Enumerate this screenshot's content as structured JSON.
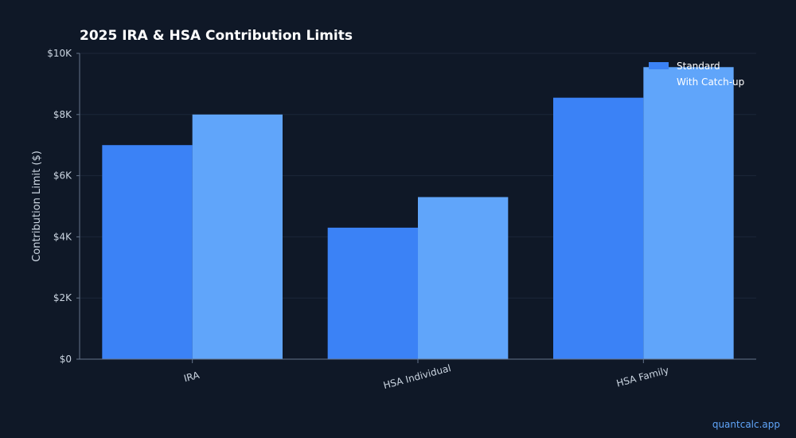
{
  "chart_data": {
    "type": "bar",
    "title": "2025 IRA & HSA Contribution Limits",
    "xlabel": "",
    "ylabel": "Contribution Limit ($)",
    "categories": [
      "IRA",
      "HSA Individual",
      "HSA Family"
    ],
    "series": [
      {
        "name": "Standard",
        "values": [
          7000,
          4300,
          8550
        ],
        "color": "#3b82f6"
      },
      {
        "name": "With Catch-up",
        "values": [
          8000,
          5300,
          9550
        ],
        "color": "#60a5fa"
      }
    ],
    "ylim": [
      0,
      10000
    ],
    "yticks": [
      0,
      2000,
      4000,
      6000,
      8000,
      10000
    ],
    "ytick_labels": [
      "$0",
      "$2K",
      "$4K",
      "$6K",
      "$8K",
      "$10K"
    ],
    "grid": true,
    "legend_position": "top-right"
  },
  "footer": {
    "watermark": "quantcalc.app"
  },
  "colors": {
    "background": "#0f1827",
    "grid": "#1c2638",
    "axis": "#64748b"
  }
}
